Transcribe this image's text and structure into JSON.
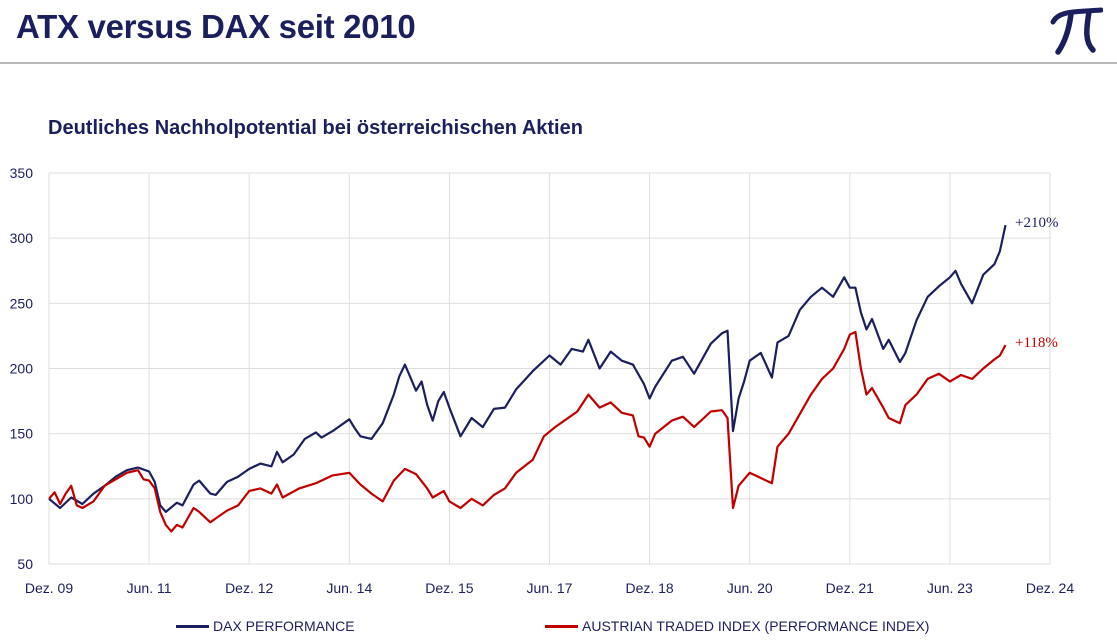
{
  "header": {
    "title": "ATX versus DAX seit 2010",
    "logo_icon": "pi-logo-icon"
  },
  "colors": {
    "dax": "#1b1f5e",
    "atx": "#c00000",
    "grid": "#dedede",
    "text": "#1b1f5e"
  },
  "chart_data": {
    "type": "line",
    "title": "Deutliches Nachholpotential bei österreichischen Aktien",
    "xlabel": "",
    "ylabel": "",
    "x_start": "2009-12",
    "x_end": "2024-12",
    "x_tick_labels": [
      "Dez. 09",
      "Jun. 11",
      "Dez. 12",
      "Jun. 14",
      "Dez. 15",
      "Jun. 17",
      "Dez. 18",
      "Jun. 20",
      "Dez. 21",
      "Jun. 23",
      "Dez. 24"
    ],
    "x_tick_dates": [
      "2009-12",
      "2011-06",
      "2012-12",
      "2014-06",
      "2015-12",
      "2017-06",
      "2018-12",
      "2020-06",
      "2021-12",
      "2023-06",
      "2024-12"
    ],
    "ylim": [
      50,
      350
    ],
    "y_ticks": [
      50,
      100,
      150,
      200,
      250,
      300,
      350
    ],
    "grid": true,
    "legend_position": "bottom",
    "series": [
      {
        "name": "DAX PERFORMANCE",
        "color": "#1b1f5e",
        "end_label": "+210%",
        "points": [
          [
            "2009-12",
            100
          ],
          [
            "2010-02",
            93
          ],
          [
            "2010-04",
            101
          ],
          [
            "2010-06",
            96
          ],
          [
            "2010-08",
            104
          ],
          [
            "2010-10",
            110
          ],
          [
            "2010-12",
            117
          ],
          [
            "2011-02",
            122
          ],
          [
            "2011-04",
            124
          ],
          [
            "2011-06",
            121
          ],
          [
            "2011-07",
            113
          ],
          [
            "2011-08",
            95
          ],
          [
            "2011-09",
            90
          ],
          [
            "2011-11",
            97
          ],
          [
            "2011-12",
            95
          ],
          [
            "2012-02",
            111
          ],
          [
            "2012-03",
            114
          ],
          [
            "2012-05",
            104
          ],
          [
            "2012-06",
            103
          ],
          [
            "2012-08",
            113
          ],
          [
            "2012-10",
            117
          ],
          [
            "2012-12",
            123
          ],
          [
            "2013-02",
            127
          ],
          [
            "2013-04",
            125
          ],
          [
            "2013-05",
            136
          ],
          [
            "2013-06",
            128
          ],
          [
            "2013-08",
            134
          ],
          [
            "2013-10",
            146
          ],
          [
            "2013-12",
            151
          ],
          [
            "2014-01",
            147
          ],
          [
            "2014-03",
            152
          ],
          [
            "2014-06",
            161
          ],
          [
            "2014-07",
            154
          ],
          [
            "2014-08",
            148
          ],
          [
            "2014-10",
            146
          ],
          [
            "2014-12",
            158
          ],
          [
            "2015-02",
            180
          ],
          [
            "2015-03",
            194
          ],
          [
            "2015-04",
            203
          ],
          [
            "2015-05",
            193
          ],
          [
            "2015-06",
            183
          ],
          [
            "2015-07",
            190
          ],
          [
            "2015-08",
            172
          ],
          [
            "2015-09",
            160
          ],
          [
            "2015-10",
            175
          ],
          [
            "2015-11",
            182
          ],
          [
            "2015-12",
            170
          ],
          [
            "2016-02",
            148
          ],
          [
            "2016-04",
            162
          ],
          [
            "2016-06",
            155
          ],
          [
            "2016-08",
            169
          ],
          [
            "2016-10",
            170
          ],
          [
            "2016-12",
            184
          ],
          [
            "2017-03",
            198
          ],
          [
            "2017-06",
            210
          ],
          [
            "2017-08",
            203
          ],
          [
            "2017-10",
            215
          ],
          [
            "2017-12",
            213
          ],
          [
            "2018-01",
            222
          ],
          [
            "2018-03",
            200
          ],
          [
            "2018-05",
            213
          ],
          [
            "2018-07",
            206
          ],
          [
            "2018-09",
            203
          ],
          [
            "2018-11",
            188
          ],
          [
            "2018-12",
            177
          ],
          [
            "2019-01",
            186
          ],
          [
            "2019-04",
            206
          ],
          [
            "2019-06",
            209
          ],
          [
            "2019-08",
            196
          ],
          [
            "2019-11",
            219
          ],
          [
            "2020-01",
            227
          ],
          [
            "2020-02",
            229
          ],
          [
            "2020-03",
            152
          ],
          [
            "2020-04",
            177
          ],
          [
            "2020-05",
            190
          ],
          [
            "2020-06",
            206
          ],
          [
            "2020-08",
            212
          ],
          [
            "2020-10",
            193
          ],
          [
            "2020-11",
            220
          ],
          [
            "2021-01",
            225
          ],
          [
            "2021-03",
            245
          ],
          [
            "2021-05",
            255
          ],
          [
            "2021-07",
            262
          ],
          [
            "2021-09",
            255
          ],
          [
            "2021-11",
            270
          ],
          [
            "2021-12",
            262
          ],
          [
            "2022-01",
            262
          ],
          [
            "2022-02",
            243
          ],
          [
            "2022-03",
            230
          ],
          [
            "2022-04",
            238
          ],
          [
            "2022-06",
            215
          ],
          [
            "2022-07",
            222
          ],
          [
            "2022-09",
            205
          ],
          [
            "2022-10",
            212
          ],
          [
            "2022-12",
            237
          ],
          [
            "2023-02",
            255
          ],
          [
            "2023-04",
            263
          ],
          [
            "2023-06",
            270
          ],
          [
            "2023-07",
            275
          ],
          [
            "2023-08",
            265
          ],
          [
            "2023-10",
            250
          ],
          [
            "2023-12",
            272
          ],
          [
            "2024-02",
            280
          ],
          [
            "2024-03",
            290
          ],
          [
            "2024-04",
            310
          ]
        ]
      },
      {
        "name": "AUSTRIAN TRADED INDEX (PERFORMANCE INDEX)",
        "color": "#c00000",
        "end_label": "+118%",
        "points": [
          [
            "2009-12",
            100
          ],
          [
            "2010-01",
            105
          ],
          [
            "2010-02",
            96
          ],
          [
            "2010-03",
            104
          ],
          [
            "2010-04",
            110
          ],
          [
            "2010-05",
            95
          ],
          [
            "2010-06",
            93
          ],
          [
            "2010-08",
            98
          ],
          [
            "2010-10",
            110
          ],
          [
            "2010-12",
            115
          ],
          [
            "2011-02",
            120
          ],
          [
            "2011-04",
            122
          ],
          [
            "2011-05",
            115
          ],
          [
            "2011-06",
            114
          ],
          [
            "2011-07",
            108
          ],
          [
            "2011-08",
            90
          ],
          [
            "2011-09",
            80
          ],
          [
            "2011-10",
            75
          ],
          [
            "2011-11",
            80
          ],
          [
            "2011-12",
            78
          ],
          [
            "2012-02",
            93
          ],
          [
            "2012-03",
            90
          ],
          [
            "2012-05",
            82
          ],
          [
            "2012-06",
            85
          ],
          [
            "2012-08",
            91
          ],
          [
            "2012-10",
            95
          ],
          [
            "2012-12",
            106
          ],
          [
            "2013-02",
            108
          ],
          [
            "2013-04",
            104
          ],
          [
            "2013-05",
            111
          ],
          [
            "2013-06",
            101
          ],
          [
            "2013-09",
            108
          ],
          [
            "2013-12",
            112
          ],
          [
            "2014-03",
            118
          ],
          [
            "2014-06",
            120
          ],
          [
            "2014-08",
            111
          ],
          [
            "2014-10",
            104
          ],
          [
            "2014-12",
            98
          ],
          [
            "2015-02",
            114
          ],
          [
            "2015-04",
            123
          ],
          [
            "2015-06",
            119
          ],
          [
            "2015-08",
            108
          ],
          [
            "2015-09",
            101
          ],
          [
            "2015-11",
            106
          ],
          [
            "2015-12",
            98
          ],
          [
            "2016-02",
            93
          ],
          [
            "2016-04",
            100
          ],
          [
            "2016-06",
            95
          ],
          [
            "2016-08",
            103
          ],
          [
            "2016-10",
            108
          ],
          [
            "2016-12",
            120
          ],
          [
            "2017-03",
            130
          ],
          [
            "2017-05",
            148
          ],
          [
            "2017-07",
            155
          ],
          [
            "2017-09",
            161
          ],
          [
            "2017-11",
            167
          ],
          [
            "2018-01",
            180
          ],
          [
            "2018-03",
            170
          ],
          [
            "2018-05",
            174
          ],
          [
            "2018-07",
            166
          ],
          [
            "2018-09",
            164
          ],
          [
            "2018-10",
            148
          ],
          [
            "2018-11",
            147
          ],
          [
            "2018-12",
            140
          ],
          [
            "2019-01",
            150
          ],
          [
            "2019-04",
            160
          ],
          [
            "2019-06",
            163
          ],
          [
            "2019-08",
            155
          ],
          [
            "2019-11",
            167
          ],
          [
            "2020-01",
            168
          ],
          [
            "2020-02",
            162
          ],
          [
            "2020-03",
            93
          ],
          [
            "2020-04",
            110
          ],
          [
            "2020-06",
            120
          ],
          [
            "2020-08",
            116
          ],
          [
            "2020-10",
            112
          ],
          [
            "2020-11",
            140
          ],
          [
            "2021-01",
            150
          ],
          [
            "2021-03",
            165
          ],
          [
            "2021-05",
            180
          ],
          [
            "2021-07",
            192
          ],
          [
            "2021-09",
            200
          ],
          [
            "2021-11",
            215
          ],
          [
            "2021-12",
            226
          ],
          [
            "2022-01",
            228
          ],
          [
            "2022-02",
            200
          ],
          [
            "2022-03",
            180
          ],
          [
            "2022-04",
            185
          ],
          [
            "2022-06",
            170
          ],
          [
            "2022-07",
            162
          ],
          [
            "2022-09",
            158
          ],
          [
            "2022-10",
            172
          ],
          [
            "2022-12",
            180
          ],
          [
            "2023-02",
            192
          ],
          [
            "2023-04",
            196
          ],
          [
            "2023-06",
            190
          ],
          [
            "2023-08",
            195
          ],
          [
            "2023-10",
            192
          ],
          [
            "2023-12",
            200
          ],
          [
            "2024-02",
            207
          ],
          [
            "2024-03",
            210
          ],
          [
            "2024-04",
            218
          ]
        ]
      }
    ]
  }
}
